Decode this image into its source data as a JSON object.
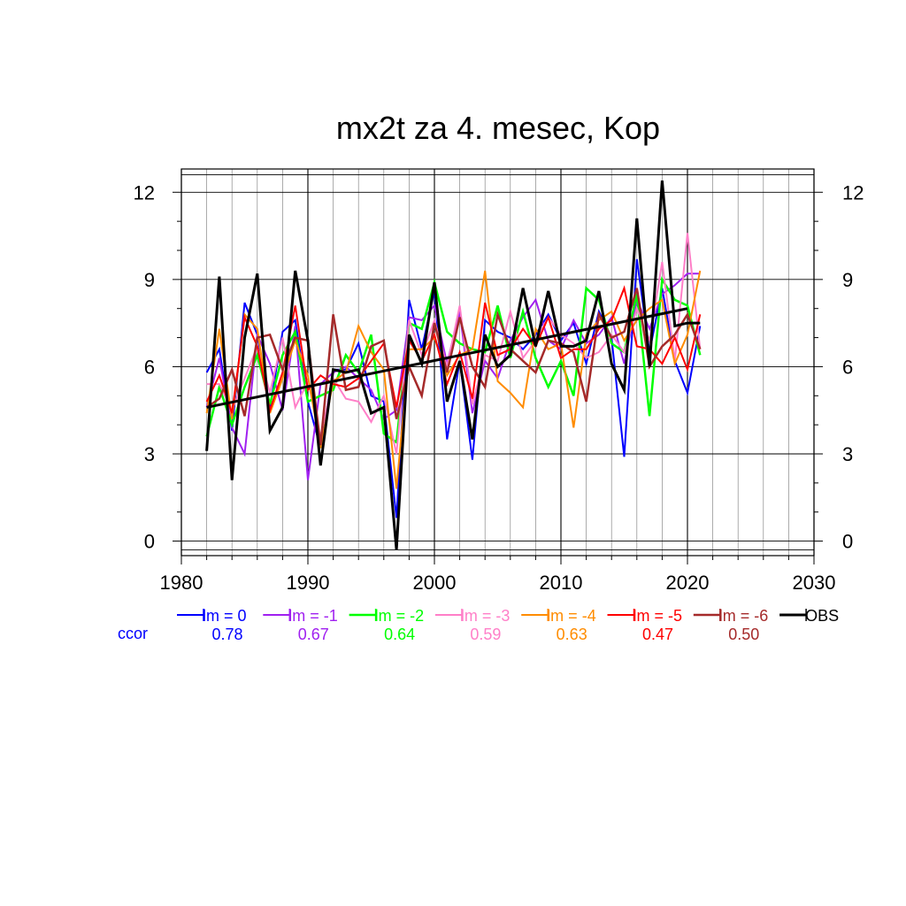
{
  "chart_data": {
    "type": "line",
    "title": "mx2t za 4. mesec, Kop",
    "xlim": [
      1980,
      2030
    ],
    "ylim": [
      -0.5,
      12.8
    ],
    "x_ticks": [
      1980,
      1990,
      2000,
      2010,
      2020,
      2030
    ],
    "y_ticks": [
      0,
      3,
      6,
      9,
      12
    ],
    "x": [
      1982,
      1983,
      1984,
      1985,
      1986,
      1987,
      1988,
      1989,
      1990,
      1991,
      1992,
      1993,
      1994,
      1995,
      1996,
      1997,
      1998,
      1999,
      2000,
      2001,
      2002,
      2003,
      2004,
      2005,
      2006,
      2007,
      2008,
      2009,
      2010,
      2011,
      2012,
      2013,
      2014,
      2015,
      2016,
      2017,
      2018,
      2019,
      2020,
      2021
    ],
    "grid": "on",
    "ccor_label": "ccor",
    "series": [
      {
        "name": "lm = 0",
        "color": "#0000ff",
        "width": 2,
        "ccor": "0.78",
        "values": [
          5.8,
          6.6,
          3.8,
          8.2,
          7.1,
          4.6,
          7.2,
          7.6,
          4.8,
          3.2,
          5.9,
          5.9,
          6.8,
          5.0,
          4.8,
          0.8,
          8.3,
          6.6,
          8.6,
          3.5,
          6.2,
          2.8,
          7.6,
          7.2,
          7.0,
          6.6,
          7.1,
          7.8,
          6.9,
          7.5,
          6.1,
          7.9,
          7.0,
          2.9,
          9.7,
          6.5,
          8.7,
          6.2,
          5.1,
          7.4
        ]
      },
      {
        "name": "lm = -1",
        "color": "#a020f0",
        "width": 2,
        "ccor": "0.67",
        "values": [
          4.6,
          6.3,
          3.9,
          3.0,
          7.1,
          6.1,
          4.5,
          7.4,
          2.1,
          5.4,
          5.8,
          6.0,
          5.6,
          5.2,
          4.2,
          4.5,
          7.7,
          7.6,
          8.1,
          6.1,
          7.9,
          4.4,
          6.2,
          5.6,
          6.9,
          7.7,
          8.3,
          6.9,
          6.6,
          7.6,
          6.8,
          7.1,
          7.7,
          6.1,
          8.3,
          7.3,
          8.5,
          8.8,
          9.2,
          9.2
        ]
      },
      {
        "name": "lm = -2",
        "color": "#00ff00",
        "width": 2.5,
        "ccor": "0.64",
        "values": [
          3.6,
          5.3,
          4.0,
          5.3,
          6.4,
          4.7,
          6.4,
          7.2,
          4.8,
          5.0,
          5.2,
          6.4,
          5.8,
          7.1,
          3.7,
          3.4,
          7.5,
          7.3,
          8.9,
          7.2,
          6.8,
          6.6,
          6.5,
          8.1,
          6.3,
          7.9,
          6.3,
          5.3,
          6.2,
          5.0,
          8.7,
          8.3,
          6.8,
          6.5,
          8.5,
          4.3,
          9.0,
          8.3,
          8.1,
          6.4
        ]
      },
      {
        "name": "lm = -3",
        "color": "#ff7fc8",
        "width": 2,
        "ccor": "0.59",
        "values": [
          5.4,
          5.4,
          4.5,
          5.6,
          6.7,
          5.1,
          7.0,
          4.6,
          5.5,
          3.6,
          5.6,
          4.9,
          4.8,
          4.1,
          5.0,
          3.0,
          7.6,
          6.4,
          7.6,
          6.0,
          8.1,
          4.7,
          6.4,
          6.2,
          7.9,
          6.3,
          6.9,
          7.7,
          7.1,
          6.8,
          6.3,
          6.5,
          7.1,
          6.5,
          8.0,
          6.9,
          9.6,
          6.2,
          10.6,
          6.6
        ]
      },
      {
        "name": "lm = -4",
        "color": "#ff8c00",
        "width": 2,
        "ccor": "0.63",
        "values": [
          4.4,
          7.3,
          4.2,
          7.8,
          7.3,
          4.4,
          5.6,
          6.9,
          5.7,
          3.2,
          5.5,
          5.8,
          7.4,
          6.5,
          5.9,
          1.8,
          6.6,
          6.6,
          7.0,
          5.7,
          6.4,
          6.6,
          9.3,
          5.5,
          5.1,
          4.6,
          7.3,
          6.6,
          6.8,
          3.9,
          7.1,
          7.6,
          7.9,
          6.9,
          7.6,
          8.0,
          8.3,
          6.1,
          7.1,
          9.3
        ]
      },
      {
        "name": "lm = -5",
        "color": "#ff0000",
        "width": 2,
        "ccor": "0.47",
        "values": [
          4.8,
          5.7,
          4.4,
          7.7,
          6.7,
          4.5,
          5.8,
          8.1,
          5.2,
          5.7,
          5.4,
          5.3,
          5.6,
          6.2,
          6.8,
          4.6,
          6.9,
          6.2,
          7.1,
          5.4,
          6.5,
          4.9,
          8.2,
          6.4,
          6.6,
          7.3,
          6.7,
          7.7,
          6.3,
          6.6,
          6.6,
          7.3,
          7.6,
          8.7,
          6.7,
          6.6,
          6.1,
          7.0,
          5.9,
          7.8
        ]
      },
      {
        "name": "lm = -6",
        "color": "#a52a2a",
        "width": 2.5,
        "ccor": "0.50",
        "values": [
          4.6,
          4.9,
          5.9,
          4.3,
          7.0,
          7.1,
          5.9,
          7.0,
          6.9,
          3.3,
          7.8,
          5.2,
          5.3,
          6.7,
          6.9,
          4.2,
          6.0,
          5.0,
          7.5,
          5.8,
          7.7,
          6.0,
          5.3,
          7.8,
          6.6,
          6.2,
          5.8,
          6.9,
          6.8,
          6.5,
          4.8,
          7.8,
          7.0,
          7.2,
          8.7,
          6.0,
          6.7,
          7.1,
          7.8,
          6.6
        ]
      },
      {
        "name": "OBS",
        "color": "#000000",
        "width": 3,
        "ccor": "",
        "values": [
          3.1,
          9.1,
          2.1,
          7.0,
          9.2,
          3.8,
          4.6,
          9.3,
          6.9,
          2.6,
          5.9,
          5.8,
          5.9,
          4.4,
          4.6,
          -0.3,
          7.1,
          6.1,
          8.9,
          4.8,
          6.2,
          3.5,
          7.1,
          6.0,
          6.4,
          8.7,
          6.7,
          8.6,
          6.7,
          6.7,
          6.9,
          8.6,
          6.1,
          5.2,
          11.1,
          6.0,
          12.4,
          7.4,
          7.5,
          7.5
        ]
      }
    ],
    "trend": {
      "color": "#000000",
      "x": [
        1982,
        2020
      ],
      "y": [
        4.6,
        8.0
      ]
    }
  }
}
